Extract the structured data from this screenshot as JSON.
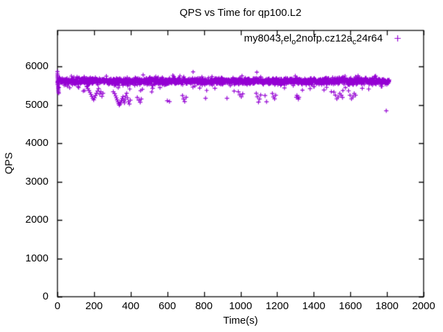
{
  "title": "QPS vs Time for qp100.L2",
  "legend": {
    "plain_name": "my8043_rel_o2nofp.cz12a_c24r64",
    "parts": [
      {
        "t": "my8043",
        "sub": false
      },
      {
        "t": "r",
        "sub": true
      },
      {
        "t": "el",
        "sub": false
      },
      {
        "t": "o",
        "sub": true
      },
      {
        "t": "2nofp.cz12a",
        "sub": false
      },
      {
        "t": "c",
        "sub": true
      },
      {
        "t": "24r64",
        "sub": false
      }
    ],
    "marker": "plus",
    "position": "top-right-inside"
  },
  "chart_data": {
    "type": "scatter",
    "title": "QPS vs Time for qp100.L2",
    "xlabel": "Time(s)",
    "ylabel": "QPS",
    "xlim": [
      0,
      2000
    ],
    "ylim": [
      0,
      6940
    ],
    "xticks": [
      0,
      200,
      400,
      600,
      800,
      1000,
      1200,
      1400,
      1600,
      1800,
      2000
    ],
    "yticks": [
      0,
      1000,
      2000,
      3000,
      4000,
      5000,
      6000
    ],
    "grid": false,
    "legend_position": "top-right-inside",
    "marker_style": "plus",
    "series": [
      {
        "name": "my8043_rel_o2nofp.cz12a_c24r64",
        "color": "#9400D3",
        "summary": "Steady-state QPS band near 5600 from t=0s to ~1810s, startup transient spread 5300-5870 at t=0, sporadic dip clusters down to ~4850-5350 QPS",
        "band": {
          "t_start": 0,
          "t_end": 1812,
          "step": 1,
          "mean_qps": 5615,
          "jitter": 75,
          "dip_prob": 0.03,
          "dip_min": 50,
          "dip_max": 230,
          "spike_prob": 0.012,
          "spike_min": 70,
          "spike_max": 160,
          "clip_low": 5240,
          "clip_high": 5870,
          "seed": 1234567
        },
        "startup_points": [
          [
            0,
            5868
          ],
          [
            0,
            5820
          ],
          [
            1,
            5780
          ],
          [
            1,
            5745
          ],
          [
            1,
            5710
          ],
          [
            2,
            5675
          ],
          [
            2,
            5640
          ],
          [
            2,
            5605
          ],
          [
            3,
            5570
          ],
          [
            3,
            5535
          ],
          [
            3,
            5500
          ],
          [
            4,
            5465
          ],
          [
            4,
            5430
          ],
          [
            5,
            5395
          ],
          [
            5,
            5360
          ],
          [
            6,
            5325
          ],
          [
            7,
            5300
          ],
          [
            8,
            5450
          ],
          [
            9,
            5540
          ],
          [
            10,
            5620
          ]
        ],
        "low_outliers": [
          [
            113,
            5470
          ],
          [
            160,
            5470
          ],
          [
            166,
            5420
          ],
          [
            172,
            5370
          ],
          [
            178,
            5320
          ],
          [
            183,
            5270
          ],
          [
            188,
            5220
          ],
          [
            193,
            5170
          ],
          [
            198,
            5130
          ],
          [
            203,
            5180
          ],
          [
            208,
            5240
          ],
          [
            213,
            5300
          ],
          [
            219,
            5360
          ],
          [
            225,
            5420
          ],
          [
            231,
            5280
          ],
          [
            237,
            5340
          ],
          [
            243,
            5220
          ],
          [
            249,
            5300
          ],
          [
            305,
            5340
          ],
          [
            312,
            5290
          ],
          [
            318,
            5230
          ],
          [
            322,
            5180
          ],
          [
            326,
            5130
          ],
          [
            330,
            5080
          ],
          [
            334,
            5030
          ],
          [
            338,
            4990
          ],
          [
            342,
            5020
          ],
          [
            346,
            5060
          ],
          [
            350,
            5110
          ],
          [
            354,
            5160
          ],
          [
            358,
            5210
          ],
          [
            362,
            5100
          ],
          [
            366,
            5050
          ],
          [
            370,
            5140
          ],
          [
            374,
            5230
          ],
          [
            378,
            5300
          ],
          [
            383,
            5180
          ],
          [
            388,
            5080
          ],
          [
            393,
            5020
          ],
          [
            398,
            5120
          ],
          [
            436,
            5190
          ],
          [
            445,
            5120
          ],
          [
            452,
            5065
          ],
          [
            458,
            5150
          ],
          [
            520,
            5430
          ],
          [
            560,
            5450
          ],
          [
            600,
            5105
          ],
          [
            612,
            5085
          ],
          [
            683,
            5240
          ],
          [
            689,
            5150
          ],
          [
            695,
            5085
          ],
          [
            703,
            5195
          ],
          [
            740,
            5460
          ],
          [
            809,
            5170
          ],
          [
            860,
            5430
          ],
          [
            926,
            5170
          ],
          [
            988,
            5340
          ],
          [
            996,
            5260
          ],
          [
            1004,
            5210
          ],
          [
            1012,
            5285
          ],
          [
            1086,
            5300
          ],
          [
            1092,
            5210
          ],
          [
            1098,
            5070
          ],
          [
            1104,
            5150
          ],
          [
            1110,
            5255
          ],
          [
            1134,
            5240
          ],
          [
            1142,
            5080
          ],
          [
            1174,
            5295
          ],
          [
            1180,
            5205
          ],
          [
            1186,
            5155
          ],
          [
            1192,
            5250
          ],
          [
            1240,
            5440
          ],
          [
            1305,
            5195
          ],
          [
            1312,
            5195
          ],
          [
            1319,
            5195
          ],
          [
            1308,
            5245
          ],
          [
            1316,
            5150
          ],
          [
            1380,
            5420
          ],
          [
            1456,
            5385
          ],
          [
            1470,
            5455
          ],
          [
            1510,
            5330
          ],
          [
            1518,
            5250
          ],
          [
            1526,
            5155
          ],
          [
            1534,
            5205
          ],
          [
            1542,
            5295
          ],
          [
            1550,
            5250
          ],
          [
            1557,
            5190
          ],
          [
            1590,
            5365
          ],
          [
            1598,
            5250
          ],
          [
            1606,
            5155
          ],
          [
            1614,
            5205
          ],
          [
            1621,
            5295
          ],
          [
            1628,
            5250
          ],
          [
            1665,
            5430
          ],
          [
            1700,
            5410
          ],
          [
            1769,
            5478
          ],
          [
            1796,
            4845
          ]
        ]
      }
    ]
  },
  "colors": {
    "series1": "#9400D3",
    "axis": "#000000",
    "background": "#ffffff"
  }
}
